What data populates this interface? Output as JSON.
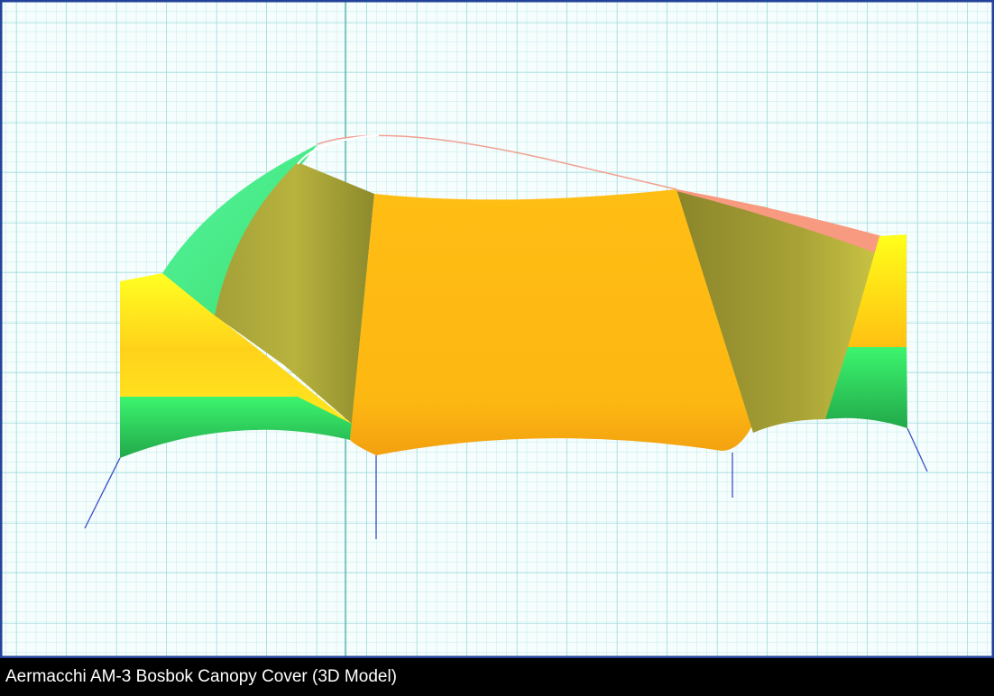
{
  "caption": "Aermacchi AM-3 Bosbok Canopy Cover (3D Model)"
}
